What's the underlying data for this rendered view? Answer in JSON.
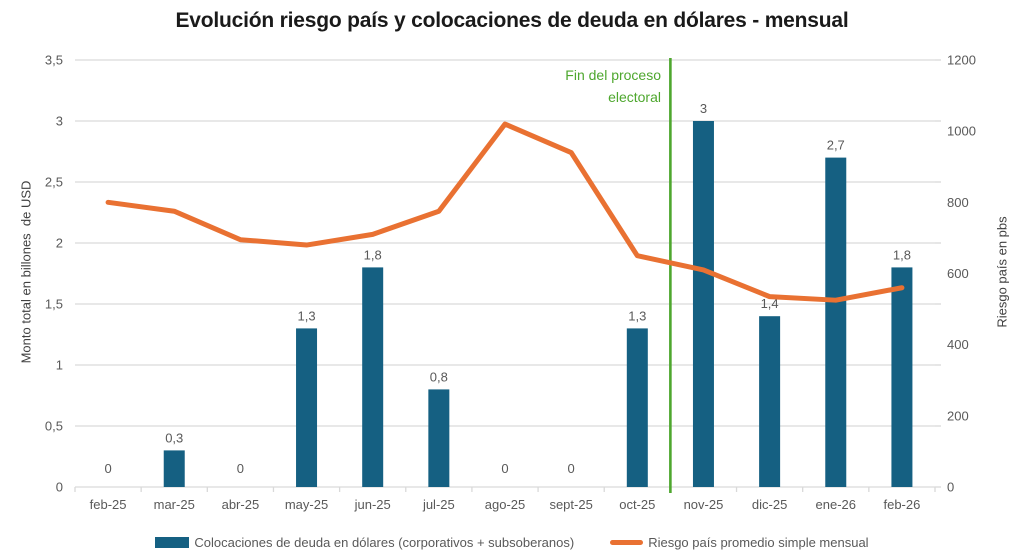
{
  "title": "Evolución riesgo país y colocaciones de deuda en dólares - mensual",
  "chart_data": {
    "type": "combo-bar-line",
    "categories": [
      "feb-25",
      "mar-25",
      "abr-25",
      "may-25",
      "jun-25",
      "jul-25",
      "ago-25",
      "sept-25",
      "oct-25",
      "nov-25",
      "dic-25",
      "ene-26",
      "feb-26"
    ],
    "series": [
      {
        "name": "Colocaciones de deuda en dólares (corporativos + subsoberanos)",
        "type": "bar",
        "axis": "left",
        "color": "#156082",
        "values": [
          0,
          0.3,
          0,
          1.3,
          1.8,
          0.8,
          0,
          0,
          1.3,
          3,
          1.4,
          2.7,
          1.8
        ],
        "labels": [
          "0",
          "0,3",
          "0",
          "1,3",
          "1,8",
          "0,8",
          "0",
          "0",
          "1,3",
          "3",
          "1,4",
          "2,7",
          "1,8"
        ]
      },
      {
        "name": "Riesgo país promedio simple mensual",
        "type": "line",
        "axis": "right",
        "color": "#E97132",
        "values": [
          800,
          775,
          695,
          680,
          710,
          775,
          1020,
          940,
          650,
          610,
          535,
          525,
          560
        ]
      }
    ],
    "left_axis": {
      "title": "Monto total en billones  de USD",
      "min": 0,
      "max": 3.5,
      "ticks": [
        "0",
        "0,5",
        "1",
        "1,5",
        "2",
        "2,5",
        "3",
        "3,5"
      ],
      "tick_values": [
        0,
        0.5,
        1,
        1.5,
        2,
        2.5,
        3,
        3.5
      ]
    },
    "right_axis": {
      "title": "Riesgo país en pbs",
      "min": 0,
      "max": 1200,
      "ticks": [
        "0",
        "200",
        "400",
        "600",
        "800",
        "1000",
        "1200"
      ],
      "tick_values": [
        0,
        200,
        400,
        600,
        800,
        1000,
        1200
      ]
    },
    "annotation": {
      "text": "Fin del proceso electoral",
      "lines": [
        "Fin del proceso",
        "electoral"
      ],
      "after_category": "oct-25",
      "color": "#4EA72E"
    },
    "grid": true,
    "legend_position": "bottom"
  },
  "legend": {
    "items": [
      {
        "label": "Colocaciones de deuda en dólares (corporativos + subsoberanos)",
        "marker": "bar",
        "color": "#156082"
      },
      {
        "label": "Riesgo país promedio simple mensual",
        "marker": "line",
        "color": "#E97132"
      }
    ]
  },
  "colors": {
    "bar": "#156082",
    "line": "#E97132",
    "annotation": "#4EA72E",
    "grid": "#D9D9D9",
    "tick_text": "#595959",
    "title_text": "#1A1A1A"
  }
}
